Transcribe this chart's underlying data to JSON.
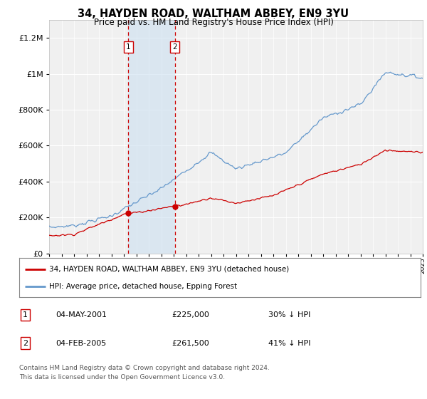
{
  "title": "34, HAYDEN ROAD, WALTHAM ABBEY, EN9 3YU",
  "subtitle": "Price paid vs. HM Land Registry's House Price Index (HPI)",
  "red_label": "34, HAYDEN ROAD, WALTHAM ABBEY, EN9 3YU (detached house)",
  "blue_label": "HPI: Average price, detached house, Epping Forest",
  "transaction1_date": "04-MAY-2001",
  "transaction1_price": 225000,
  "transaction1_note": "30% ↓ HPI",
  "transaction2_date": "04-FEB-2005",
  "transaction2_price": 261500,
  "transaction2_note": "41% ↓ HPI",
  "footer": "Contains HM Land Registry data © Crown copyright and database right 2024.\nThis data is licensed under the Open Government Licence v3.0.",
  "background_color": "#ffffff",
  "plot_bg_color": "#f0f0f0",
  "red_color": "#cc0000",
  "blue_color": "#6699cc",
  "highlight_fill": "#cce0f0",
  "dashed_color": "#cc0000",
  "grid_color": "#ffffff",
  "ylim_max": 1300000,
  "ylim_min": 0,
  "year_start": 1995,
  "year_end": 2025,
  "t1_year": 2001.37,
  "t2_year": 2005.09
}
